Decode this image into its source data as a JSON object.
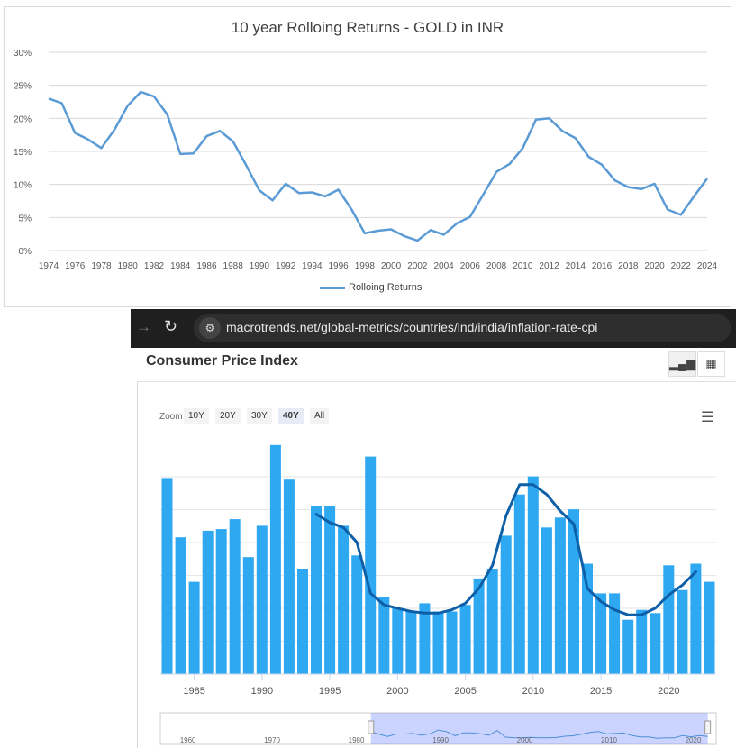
{
  "gold_chart": {
    "title": "10 year Rolloing Returns - GOLD in INR",
    "legend_label": "Rolloing Returns",
    "line_color": "#5b9bd5"
  },
  "browser": {
    "url": "macrotrends.net/global-metrics/countries/ind/india/inflation-rate-cpi"
  },
  "cpi_panel": {
    "title": "Consumer Price Index",
    "zoom_label": "Zoom",
    "zoom_options": [
      "10Y",
      "20Y",
      "30Y",
      "40Y",
      "All"
    ],
    "active_zoom": "40Y",
    "bar_color": "#2fa8f2",
    "trend_color": "#0d5fa8"
  },
  "chart_data": [
    {
      "type": "line",
      "title": "10 year Rolloing Returns - GOLD in INR",
      "xlabel": "",
      "ylabel": "",
      "ylim": [
        0,
        30
      ],
      "y_ticks": [
        "0%",
        "5%",
        "10%",
        "15%",
        "20%",
        "25%",
        "30%"
      ],
      "x_ticks": [
        "1974",
        "1976",
        "1978",
        "1980",
        "1982",
        "1984",
        "1986",
        "1988",
        "1990",
        "1992",
        "1994",
        "1996",
        "1998",
        "2000",
        "2002",
        "2004",
        "2006",
        "2008",
        "2010",
        "2012",
        "2014",
        "2016",
        "2018",
        "2020",
        "2022",
        "2024"
      ],
      "legend": "bottom",
      "grid": true,
      "x": [
        1974,
        1975,
        1976,
        1977,
        1978,
        1979,
        1980,
        1981,
        1982,
        1983,
        1984,
        1985,
        1986,
        1987,
        1988,
        1989,
        1990,
        1991,
        1992,
        1993,
        1994,
        1995,
        1996,
        1997,
        1998,
        1999,
        2000,
        2001,
        2002,
        2003,
        2004,
        2005,
        2006,
        2007,
        2008,
        2009,
        2010,
        2011,
        2012,
        2013,
        2014,
        2015,
        2016,
        2017,
        2018,
        2019,
        2020,
        2021,
        2022,
        2023,
        2024
      ],
      "series": [
        {
          "name": "Rolloing Returns",
          "values": [
            23.0,
            22.3,
            17.8,
            16.8,
            15.5,
            18.3,
            21.9,
            24.0,
            23.3,
            20.6,
            14.6,
            14.7,
            17.3,
            18.1,
            16.5,
            12.9,
            9.1,
            7.6,
            10.1,
            8.7,
            8.8,
            8.2,
            9.2,
            6.2,
            2.6,
            3.0,
            3.2,
            2.2,
            1.5,
            3.1,
            2.4,
            4.1,
            5.1,
            8.5,
            11.9,
            13.1,
            15.5,
            19.8,
            20.0,
            18.1,
            17.0,
            14.2,
            13.0,
            10.6,
            9.6,
            9.3,
            10.1,
            6.2,
            5.4,
            8.2,
            10.9
          ]
        }
      ]
    },
    {
      "type": "bar",
      "title": "Consumer Price Index",
      "x_ticks": [
        "1985",
        "1990",
        "1995",
        "2000",
        "2005",
        "2010",
        "2015",
        "2020"
      ],
      "grid": true,
      "x": [
        1983,
        1984,
        1985,
        1986,
        1987,
        1988,
        1989,
        1990,
        1991,
        1992,
        1993,
        1994,
        1995,
        1996,
        1997,
        1998,
        1999,
        2000,
        2001,
        2002,
        2003,
        2004,
        2005,
        2006,
        2007,
        2008,
        2009,
        2010,
        2011,
        2012,
        2013,
        2014,
        2015,
        2016,
        2017,
        2018,
        2019,
        2020,
        2021,
        2022,
        2023
      ],
      "ylim": [
        0,
        14
      ],
      "values": [
        11.9,
        8.3,
        5.6,
        8.7,
        8.8,
        9.4,
        7.1,
        9.0,
        13.9,
        11.8,
        6.4,
        10.2,
        10.2,
        9.0,
        7.2,
        13.2,
        4.7,
        4.0,
        3.8,
        4.3,
        3.8,
        3.8,
        4.2,
        5.8,
        6.4,
        8.4,
        10.9,
        12.0,
        8.9,
        9.5,
        10.0,
        6.7,
        4.9,
        4.9,
        3.3,
        3.9,
        3.7,
        6.6,
        5.1,
        6.7,
        5.6
      ],
      "trend_line": {
        "x": [
          1994,
          1995,
          1996,
          1997,
          1998,
          1999,
          2000,
          2001,
          2002,
          2003,
          2004,
          2005,
          2006,
          2007,
          2008,
          2009,
          2010,
          2011,
          2012,
          2013,
          2014,
          2015,
          2016,
          2017,
          2018,
          2019,
          2020,
          2021,
          2022
        ],
        "values": [
          9.7,
          9.2,
          8.9,
          8.0,
          4.9,
          4.2,
          4.0,
          3.8,
          3.7,
          3.7,
          3.9,
          4.3,
          5.2,
          6.6,
          9.6,
          11.5,
          11.5,
          10.9,
          9.9,
          9.1,
          5.2,
          4.4,
          3.9,
          3.6,
          3.6,
          4.0,
          4.8,
          5.4,
          6.2
        ]
      },
      "navigator": {
        "x_ticks": [
          "1960",
          "1970",
          "1980",
          "1990",
          "2000",
          "2010",
          "2020"
        ],
        "selected_range": [
          1983,
          2023
        ]
      }
    }
  ]
}
